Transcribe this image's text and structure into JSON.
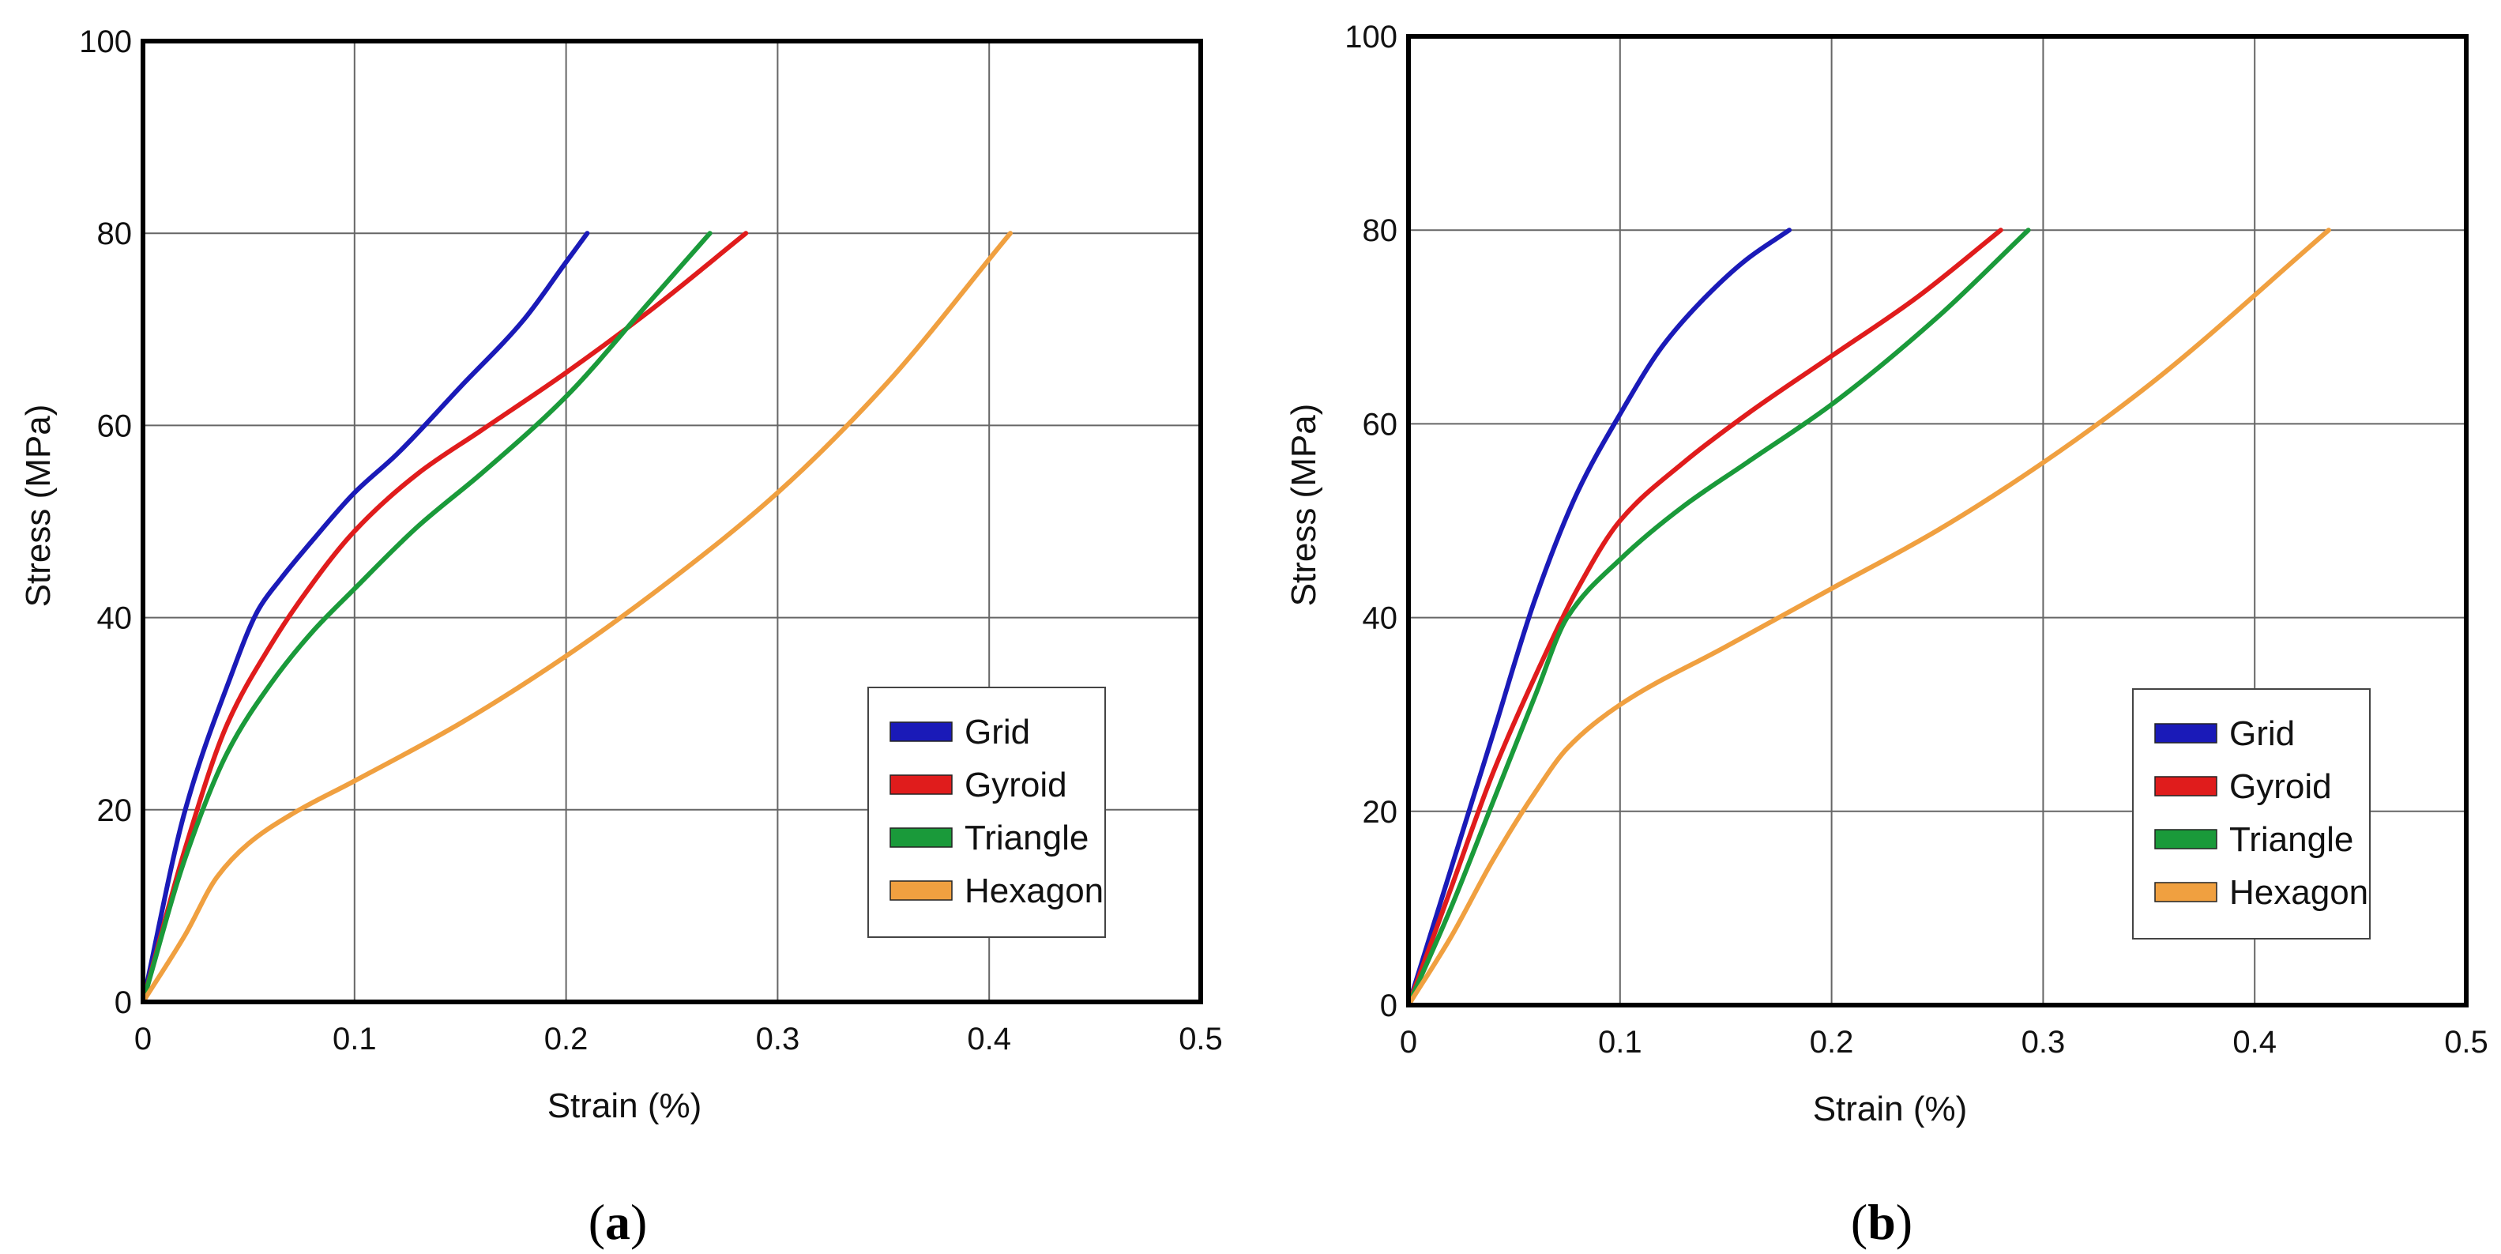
{
  "chart_data": [
    {
      "type": "line",
      "panel_label": "a",
      "xlabel": "Strain (%)",
      "ylabel": "Stress (MPa)",
      "xlim": [
        0,
        0.5
      ],
      "ylim": [
        0,
        100
      ],
      "xticks": [
        "0",
        "0.1",
        "0.2",
        "0.3",
        "0.4",
        "0.5"
      ],
      "yticks": [
        "0",
        "20",
        "40",
        "60",
        "80",
        "100"
      ],
      "grid": true,
      "legend_position": "bottom-right",
      "series": [
        {
          "name": "Grid",
          "color": "#1a1ab8",
          "x": [
            0,
            0.02,
            0.04,
            0.055,
            0.065,
            0.08,
            0.1,
            0.12,
            0.15,
            0.18,
            0.2,
            0.21
          ],
          "y": [
            0,
            20,
            33,
            41,
            44,
            48,
            53,
            57,
            64,
            71,
            77,
            80
          ]
        },
        {
          "name": "Gyroid",
          "color": "#e01c1c",
          "x": [
            0,
            0.02,
            0.04,
            0.06,
            0.075,
            0.1,
            0.13,
            0.16,
            0.2,
            0.24,
            0.285
          ],
          "y": [
            0,
            16,
            29,
            37,
            42,
            49,
            55,
            59.5,
            65.5,
            72,
            80
          ]
        },
        {
          "name": "Triangle",
          "color": "#1a9a3a",
          "x": [
            0,
            0.02,
            0.04,
            0.06,
            0.08,
            0.1,
            0.13,
            0.16,
            0.2,
            0.24,
            0.268
          ],
          "y": [
            0,
            15,
            26,
            33,
            38.5,
            43,
            49.5,
            55,
            63,
            73,
            80
          ]
        },
        {
          "name": "Hexagon",
          "color": "#f0a040",
          "x": [
            0,
            0.02,
            0.035,
            0.05,
            0.07,
            0.1,
            0.15,
            0.2,
            0.25,
            0.3,
            0.35,
            0.41
          ],
          "y": [
            0,
            7,
            13,
            16.5,
            19.5,
            23,
            29,
            36,
            44,
            53,
            64,
            80
          ]
        }
      ]
    },
    {
      "type": "line",
      "panel_label": "b",
      "xlabel": "Strain (%)",
      "ylabel": "Stress (MPa)",
      "xlim": [
        0,
        0.5
      ],
      "ylim": [
        0,
        100
      ],
      "xticks": [
        "0",
        "0.1",
        "0.2",
        "0.3",
        "0.4",
        "0.5"
      ],
      "yticks": [
        "0",
        "20",
        "40",
        "60",
        "80",
        "100"
      ],
      "grid": true,
      "legend_position": "bottom-right",
      "series": [
        {
          "name": "Grid",
          "color": "#1a1ab8",
          "x": [
            0,
            0.02,
            0.04,
            0.06,
            0.08,
            0.1,
            0.12,
            0.14,
            0.16,
            0.18
          ],
          "y": [
            0,
            14,
            28,
            42,
            53,
            61,
            68,
            73,
            77,
            80
          ]
        },
        {
          "name": "Gyroid",
          "color": "#e01c1c",
          "x": [
            0,
            0.02,
            0.04,
            0.06,
            0.08,
            0.1,
            0.13,
            0.16,
            0.2,
            0.24,
            0.28
          ],
          "y": [
            0,
            12,
            24,
            34,
            43,
            50,
            56,
            61,
            67,
            73,
            80
          ]
        },
        {
          "name": "Triangle",
          "color": "#1a9a3a",
          "x": [
            0,
            0.02,
            0.04,
            0.06,
            0.075,
            0.1,
            0.13,
            0.16,
            0.2,
            0.25,
            0.293
          ],
          "y": [
            0,
            10,
            21,
            32,
            40,
            46,
            51.5,
            56,
            62,
            71,
            80
          ]
        },
        {
          "name": "Hexagon",
          "color": "#f0a040",
          "x": [
            0,
            0.02,
            0.04,
            0.06,
            0.075,
            0.1,
            0.15,
            0.2,
            0.25,
            0.3,
            0.35,
            0.435
          ],
          "y": [
            0,
            7,
            15,
            22,
            26.5,
            31,
            37,
            43,
            49,
            56,
            64,
            80
          ]
        }
      ]
    }
  ]
}
